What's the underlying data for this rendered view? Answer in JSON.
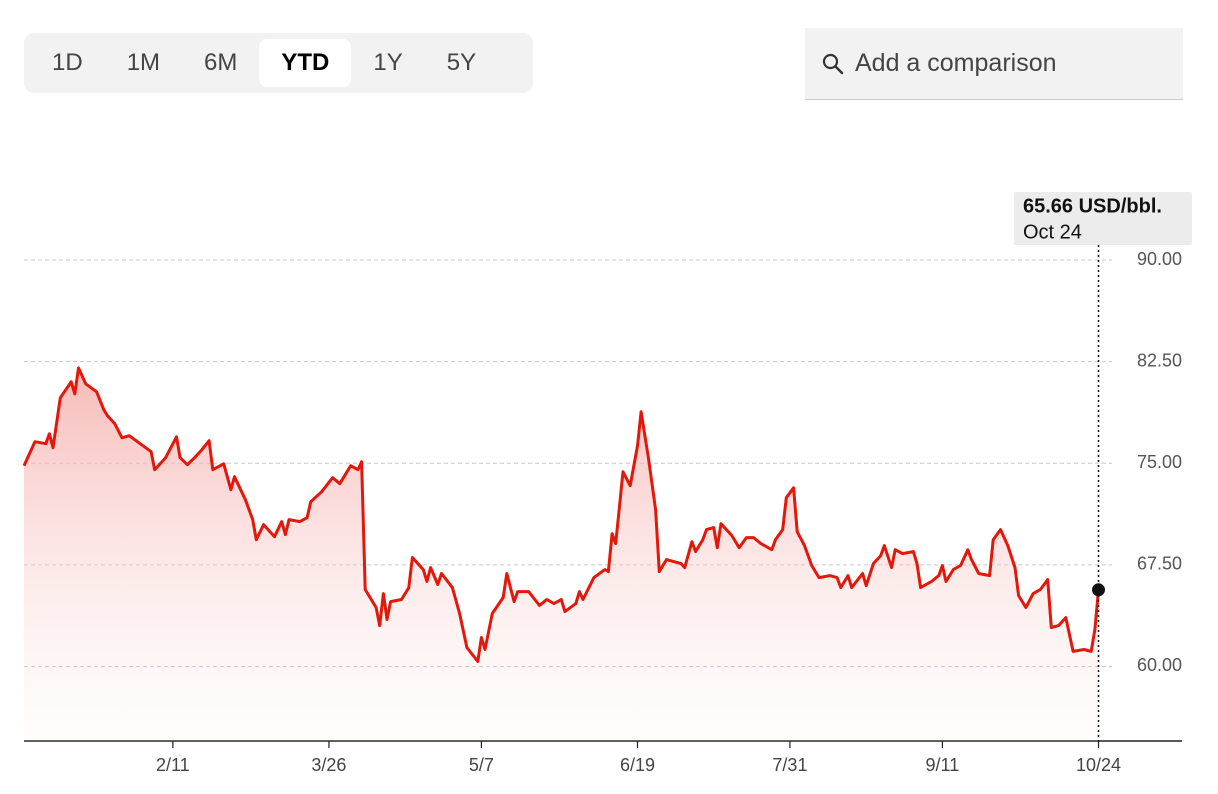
{
  "ranges": [
    "1D",
    "1M",
    "6M",
    "YTD",
    "1Y",
    "5Y"
  ],
  "selected_range": "YTD",
  "search_placeholder": "Add a comparison",
  "chart_data": {
    "type": "line",
    "annotation": {
      "label": "65.66 USD/bbl.",
      "date": "Oct 24"
    },
    "x": [
      "1/1",
      "1/4",
      "1/7",
      "1/8",
      "1/9",
      "1/11",
      "1/14",
      "1/15",
      "1/16",
      "1/18",
      "1/21",
      "1/23",
      "1/24",
      "1/26",
      "1/28",
      "1/30",
      "2/2",
      "2/5",
      "2/6",
      "2/9",
      "2/12",
      "2/13",
      "2/15",
      "2/17",
      "2/19",
      "2/21",
      "2/22",
      "2/25",
      "2/27",
      "2/28",
      "3/3",
      "3/5",
      "3/6",
      "3/8",
      "3/11",
      "3/13",
      "3/14",
      "3/15",
      "3/18",
      "3/20",
      "3/21",
      "3/24",
      "3/27",
      "3/29",
      "4/1",
      "4/3",
      "4/4",
      "4/5",
      "4/8",
      "4/9",
      "4/10",
      "4/11",
      "4/12",
      "4/15",
      "4/17",
      "4/18",
      "4/21",
      "4/22",
      "4/23",
      "4/25",
      "4/26",
      "4/29",
      "5/1",
      "5/3",
      "5/6",
      "5/7",
      "5/8",
      "5/10",
      "5/13",
      "5/14",
      "5/16",
      "5/17",
      "5/20",
      "5/23",
      "5/25",
      "5/27",
      "5/29",
      "5/30",
      "6/2",
      "6/3",
      "6/4",
      "6/7",
      "6/10",
      "6/11",
      "6/12",
      "6/13",
      "6/15",
      "6/17",
      "6/19",
      "6/20",
      "6/22",
      "6/24",
      "6/25",
      "6/27",
      "7/1",
      "7/2",
      "7/4",
      "7/5",
      "7/7",
      "7/8",
      "7/10",
      "7/11",
      "7/12",
      "7/15",
      "7/17",
      "7/19",
      "7/21",
      "7/23",
      "7/26",
      "7/27",
      "7/29",
      "7/30",
      "8/1",
      "8/2",
      "8/4",
      "8/6",
      "8/8",
      "8/11",
      "8/13",
      "8/14",
      "8/16",
      "8/17",
      "8/20",
      "8/21",
      "8/23",
      "8/25",
      "8/26",
      "8/28",
      "8/29",
      "8/31",
      "9/3",
      "9/4",
      "9/5",
      "9/8",
      "9/10",
      "9/11",
      "9/12",
      "9/14",
      "9/16",
      "9/18",
      "9/19",
      "9/21",
      "9/24",
      "9/25",
      "9/27",
      "9/29",
      "10/1",
      "10/2",
      "10/4",
      "10/6",
      "10/8",
      "10/10",
      "10/11",
      "10/13",
      "10/15",
      "10/17",
      "10/20",
      "10/22",
      "10/23",
      "10/24"
    ],
    "series": [
      {
        "color": "#e3170a",
        "values": [
          74.82,
          76.59,
          76.44,
          77.17,
          76.14,
          79.83,
          81.01,
          80.12,
          82.04,
          80.86,
          80.27,
          78.94,
          78.5,
          77.91,
          76.88,
          77.03,
          76.44,
          75.85,
          74.52,
          75.41,
          76.95,
          75.41,
          74.89,
          75.41,
          76.0,
          76.66,
          74.52,
          74.96,
          73.05,
          74.01,
          72.31,
          70.84,
          69.36,
          70.47,
          69.58,
          70.69,
          69.73,
          70.84,
          70.69,
          70.98,
          72.16,
          72.9,
          73.93,
          73.49,
          74.82,
          74.52,
          75.11,
          65.68,
          64.35,
          63.02,
          65.38,
          63.47,
          64.79,
          64.94,
          65.82,
          68.04,
          67.15,
          66.27,
          67.3,
          66.05,
          66.86,
          65.82,
          63.91,
          61.4,
          60.37,
          62.14,
          61.25,
          63.91,
          65.09,
          66.86,
          64.79,
          65.53,
          65.53,
          64.5,
          64.94,
          64.64,
          64.94,
          64.05,
          64.64,
          65.53,
          64.94,
          66.56,
          67.15,
          67.0,
          69.8,
          69.07,
          74.37,
          73.34,
          76.29,
          78.8,
          75.41,
          71.57,
          67.0,
          67.89,
          67.59,
          67.3,
          69.21,
          68.48,
          69.36,
          70.1,
          70.25,
          68.77,
          70.54,
          69.66,
          68.77,
          69.51,
          69.51,
          69.07,
          68.62,
          69.36,
          70.1,
          72.46,
          73.19,
          69.95,
          68.92,
          67.45,
          66.56,
          66.71,
          66.56,
          65.82,
          66.71,
          65.82,
          66.86,
          65.97,
          67.59,
          68.18,
          68.92,
          67.3,
          68.62,
          68.33,
          68.48,
          67.59,
          65.82,
          66.27,
          66.71,
          67.45,
          66.27,
          67.15,
          67.45,
          68.62,
          67.89,
          66.86,
          66.71,
          69.36,
          70.1,
          68.92,
          67.3,
          65.23,
          64.35,
          65.38,
          65.68,
          66.41,
          62.88,
          63.02,
          63.61,
          61.11,
          61.25,
          61.11,
          62.73,
          65.66
        ]
      }
    ],
    "xlim": [
      "1/1",
      "11/16"
    ],
    "xticks": [
      "2/11",
      "3/26",
      "5/7",
      "6/19",
      "7/31",
      "9/11",
      "10/24"
    ],
    "ylim": [
      54.5,
      90
    ],
    "yticks": [
      {
        "value": 60,
        "label": "60.00"
      },
      {
        "value": 67.5,
        "label": "67.50"
      },
      {
        "value": 75,
        "label": "75.00"
      },
      {
        "value": 82.5,
        "label": "82.50"
      },
      {
        "value": 90,
        "label": "90.00"
      }
    ],
    "grid": true
  }
}
